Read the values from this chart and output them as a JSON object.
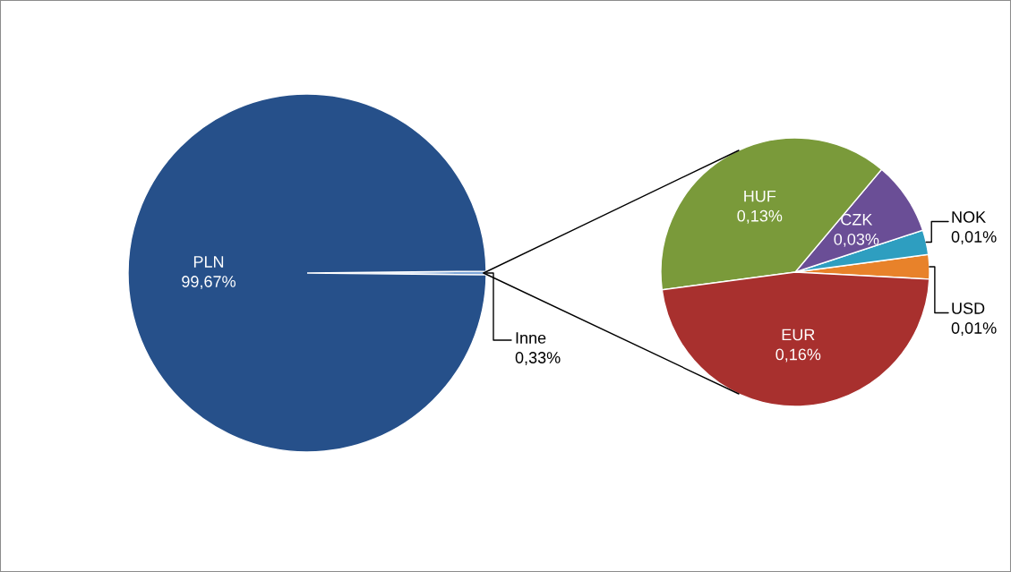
{
  "chart_data": [
    {
      "type": "pie",
      "categories": [
        "Inne",
        "PLN"
      ],
      "values": [
        0.33,
        99.67
      ],
      "colors": [
        "#7ea6d8",
        "#26508a"
      ],
      "value_labels": [
        "0,33%",
        "99,67%"
      ]
    },
    {
      "type": "pie",
      "categories": [
        "USD",
        "NOK",
        "CZK",
        "HUF",
        "EUR"
      ],
      "values": [
        0.01,
        0.01,
        0.03,
        0.13,
        0.16
      ],
      "colors": [
        "#e8822a",
        "#2e9ec0",
        "#6a4e96",
        "#7a9a3a",
        "#a8302e"
      ],
      "value_labels": [
        "0,01%",
        "0,01%",
        "0,03%",
        "0,13%",
        "0,16%"
      ]
    }
  ]
}
